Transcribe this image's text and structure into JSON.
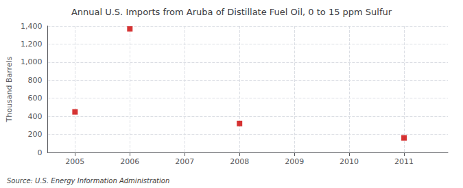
{
  "chart_data": {
    "type": "scatter",
    "title": "Annual U.S. Imports from Aruba of Distillate Fuel Oil, 0 to 15 ppm Sulfur",
    "ylabel": "Thousand Barrels",
    "source": "Source: U.S. Energy Information Administration",
    "x": [
      2005,
      2006,
      2008,
      2011
    ],
    "values": [
      449,
      1368,
      320,
      161
    ],
    "color": "#cc0000",
    "marker": "square",
    "xlim": [
      2004.5,
      2011.8
    ],
    "ylim": [
      0,
      1400
    ],
    "xticks": [
      2005,
      2006,
      2007,
      2008,
      2009,
      2010,
      2011
    ],
    "yticks": [
      0,
      200,
      400,
      600,
      800,
      {
        "value": 1000,
        "label": "1,000"
      },
      {
        "value": 1200,
        "label": "1,200"
      },
      {
        "value": 1400,
        "label": "1,400"
      }
    ],
    "grid": true
  }
}
